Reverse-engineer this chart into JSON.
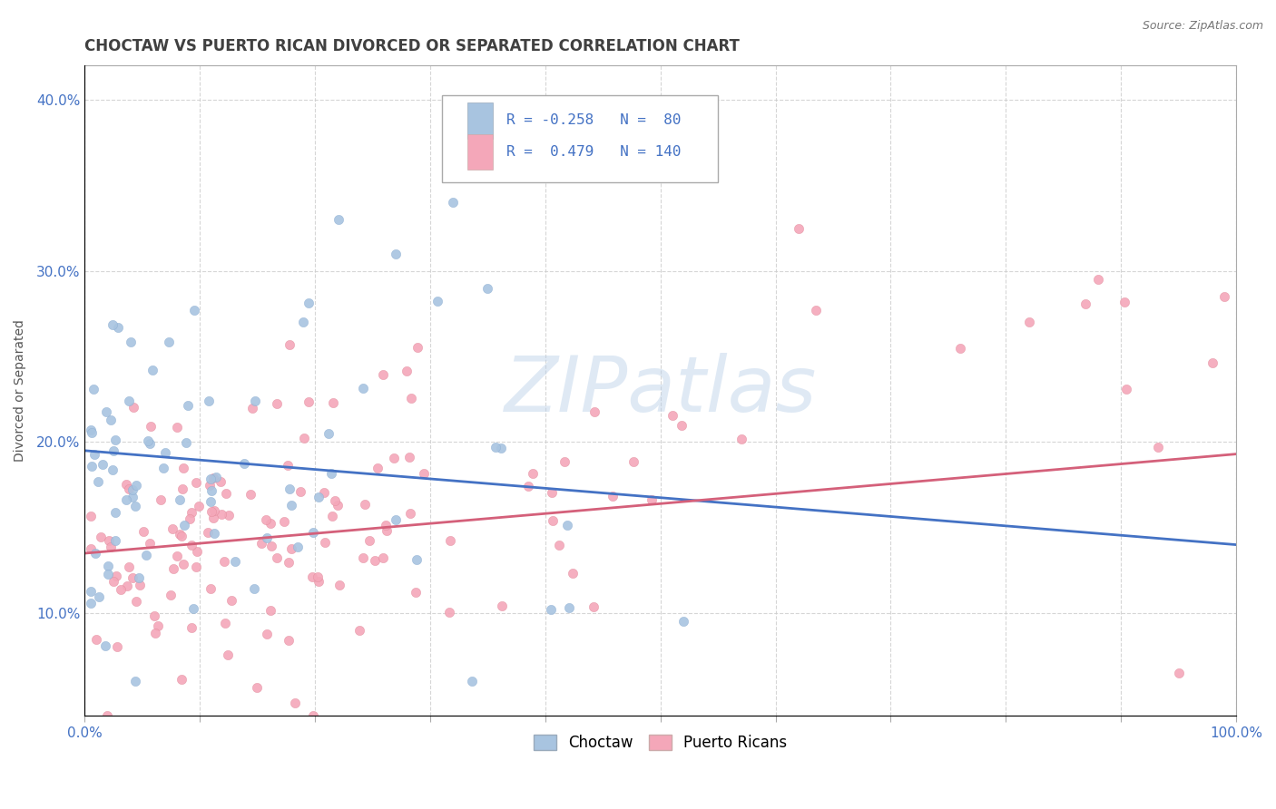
{
  "title": "CHOCTAW VS PUERTO RICAN DIVORCED OR SEPARATED CORRELATION CHART",
  "source": "Source: ZipAtlas.com",
  "ylabel": "Divorced or Separated",
  "xlim": [
    0.0,
    1.0
  ],
  "ylim": [
    0.04,
    0.42
  ],
  "ytick_labels": [
    "10.0%",
    "20.0%",
    "30.0%",
    "40.0%"
  ],
  "ytick_positions": [
    0.1,
    0.2,
    0.3,
    0.4
  ],
  "choctaw_color": "#a8c4e0",
  "puerto_rican_color": "#f4a7b9",
  "choctaw_line_color": "#4472c4",
  "puerto_rican_line_color": "#d4607a",
  "choctaw_R": -0.258,
  "choctaw_N": 80,
  "puerto_rican_R": 0.479,
  "puerto_rican_N": 140,
  "legend_text_color": "#4472c4",
  "watermark": "ZIPatlas",
  "background_color": "#ffffff",
  "grid_color": "#cccccc",
  "title_color": "#404040",
  "choctaw_seed": 42,
  "puerto_rican_seed": 123
}
